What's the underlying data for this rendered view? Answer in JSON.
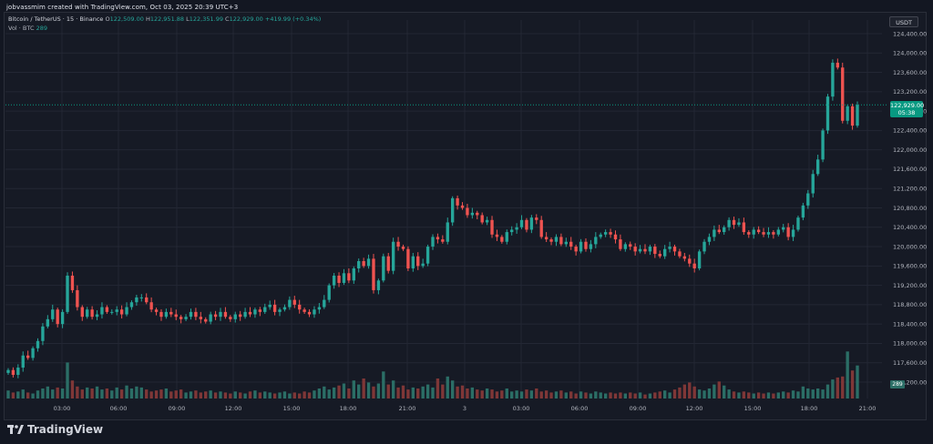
{
  "header": {
    "credit": "jobvassmim created with TradingView.com, Oct 03, 2025 20:39 UTC+3"
  },
  "legend": {
    "symbol": "Bitcoin / TetherUS · 15 · Binance",
    "open_label": "O",
    "open": "122,509.00",
    "high_label": "H",
    "high": "122,951.88",
    "low_label": "L",
    "low": "122,351.99",
    "close_label": "C",
    "close": "122,929.00",
    "change": "+419.99 (+0.34%)",
    "volume_label": "Vol · BTC",
    "volume": "289"
  },
  "currency_button": "USDT",
  "last_price": {
    "value": "122,929.00",
    "countdown": "05:38"
  },
  "volume_tag": "289",
  "footer": {
    "brand": "TradingView"
  },
  "colors": {
    "up": "#26a69a",
    "down": "#ef5350",
    "vol_up": "#2b6e66",
    "vol_down": "#7f3737",
    "background": "#161a25",
    "grid": "#232734",
    "price_line": "#089981"
  },
  "chart_data": {
    "type": "candlestick",
    "title": "Bitcoin / TetherUS · 15 · Binance",
    "ylim": [
      117200,
      124400
    ],
    "y_ticks": [
      "124,400.00",
      "124,000.00",
      "123,600.00",
      "123,200.00",
      "122,800.00",
      "122,400.00",
      "122,000.00",
      "121,600.00",
      "121,200.00",
      "120,800.00",
      "120,400.00",
      "120,000.00",
      "119,600.00",
      "119,200.00",
      "118,800.00",
      "118,400.00",
      "118,000.00",
      "117,600.00",
      "117,200.00"
    ],
    "x_ticks": [
      "03:00",
      "06:00",
      "09:00",
      "12:00",
      "15:00",
      "18:00",
      "21:00",
      "3",
      "03:00",
      "06:00",
      "09:00",
      "12:00",
      "15:00",
      "18:00",
      "21:00"
    ],
    "last_price": 122929,
    "closes": [
      117450,
      117350,
      117500,
      117750,
      117700,
      117900,
      118050,
      118350,
      118500,
      118700,
      118400,
      118650,
      119400,
      119100,
      118750,
      118550,
      118700,
      118550,
      118600,
      118750,
      118650,
      118650,
      118700,
      118600,
      118750,
      118850,
      118950,
      118950,
      118850,
      118700,
      118650,
      118550,
      118650,
      118600,
      118550,
      118500,
      118550,
      118650,
      118550,
      118500,
      118450,
      118600,
      118550,
      118650,
      118550,
      118500,
      118600,
      118550,
      118650,
      118600,
      118700,
      118650,
      118750,
      118800,
      118650,
      118700,
      118750,
      118900,
      118800,
      118700,
      118650,
      118600,
      118700,
      118750,
      118900,
      119200,
      119400,
      119250,
      119450,
      119300,
      119550,
      119700,
      119600,
      119750,
      119100,
      119300,
      119800,
      119500,
      120100,
      120000,
      119950,
      119550,
      119800,
      119600,
      119650,
      120000,
      120200,
      120150,
      120100,
      120500,
      121000,
      120850,
      120800,
      120650,
      120700,
      120650,
      120500,
      120550,
      120250,
      120200,
      120100,
      120300,
      120350,
      120400,
      120550,
      120350,
      120600,
      120550,
      120200,
      120150,
      120100,
      120200,
      120050,
      120100,
      120000,
      119900,
      120100,
      119950,
      120050,
      120200,
      120250,
      120300,
      120250,
      120150,
      119950,
      120050,
      120000,
      119900,
      119950,
      119900,
      120000,
      119850,
      119800,
      119950,
      120000,
      119900,
      119800,
      119750,
      119650,
      119550,
      119900,
      120100,
      120200,
      120350,
      120300,
      120400,
      120550,
      120450,
      120500,
      120300,
      120250,
      120350,
      120300,
      120250,
      120300,
      120250,
      120350,
      120400,
      120200,
      120350,
      120600,
      120850,
      121100,
      121500,
      121800,
      122400,
      123100,
      123800,
      123700,
      122600,
      122900,
      122500,
      122929
    ],
    "volumes": [
      0.08,
      0.06,
      0.07,
      0.09,
      0.06,
      0.05,
      0.08,
      0.1,
      0.12,
      0.09,
      0.11,
      0.1,
      0.36,
      0.18,
      0.12,
      0.09,
      0.11,
      0.1,
      0.12,
      0.09,
      0.1,
      0.08,
      0.11,
      0.09,
      0.13,
      0.1,
      0.12,
      0.11,
      0.09,
      0.07,
      0.08,
      0.09,
      0.1,
      0.07,
      0.08,
      0.09,
      0.06,
      0.07,
      0.08,
      0.06,
      0.07,
      0.08,
      0.06,
      0.07,
      0.06,
      0.05,
      0.07,
      0.06,
      0.05,
      0.07,
      0.08,
      0.06,
      0.07,
      0.06,
      0.05,
      0.06,
      0.07,
      0.05,
      0.06,
      0.05,
      0.07,
      0.06,
      0.08,
      0.1,
      0.12,
      0.09,
      0.11,
      0.13,
      0.15,
      0.1,
      0.18,
      0.14,
      0.2,
      0.16,
      0.12,
      0.15,
      0.27,
      0.14,
      0.18,
      0.11,
      0.13,
      0.09,
      0.11,
      0.1,
      0.12,
      0.14,
      0.11,
      0.2,
      0.14,
      0.22,
      0.18,
      0.12,
      0.13,
      0.1,
      0.11,
      0.09,
      0.08,
      0.1,
      0.09,
      0.07,
      0.08,
      0.1,
      0.07,
      0.08,
      0.07,
      0.09,
      0.08,
      0.1,
      0.07,
      0.08,
      0.06,
      0.07,
      0.08,
      0.06,
      0.07,
      0.05,
      0.07,
      0.06,
      0.05,
      0.07,
      0.06,
      0.05,
      0.06,
      0.05,
      0.06,
      0.05,
      0.06,
      0.05,
      0.06,
      0.04,
      0.05,
      0.06,
      0.07,
      0.08,
      0.06,
      0.09,
      0.11,
      0.14,
      0.16,
      0.12,
      0.09,
      0.08,
      0.1,
      0.14,
      0.17,
      0.13,
      0.09,
      0.07,
      0.06,
      0.07,
      0.06,
      0.05,
      0.06,
      0.05,
      0.06,
      0.05,
      0.06,
      0.07,
      0.06,
      0.08,
      0.07,
      0.12,
      0.1,
      0.09,
      0.1,
      0.09,
      0.14,
      0.19,
      0.21,
      0.22,
      0.47,
      0.28,
      0.33,
      0.24,
      0.11,
      0.06,
      0.05
    ]
  }
}
